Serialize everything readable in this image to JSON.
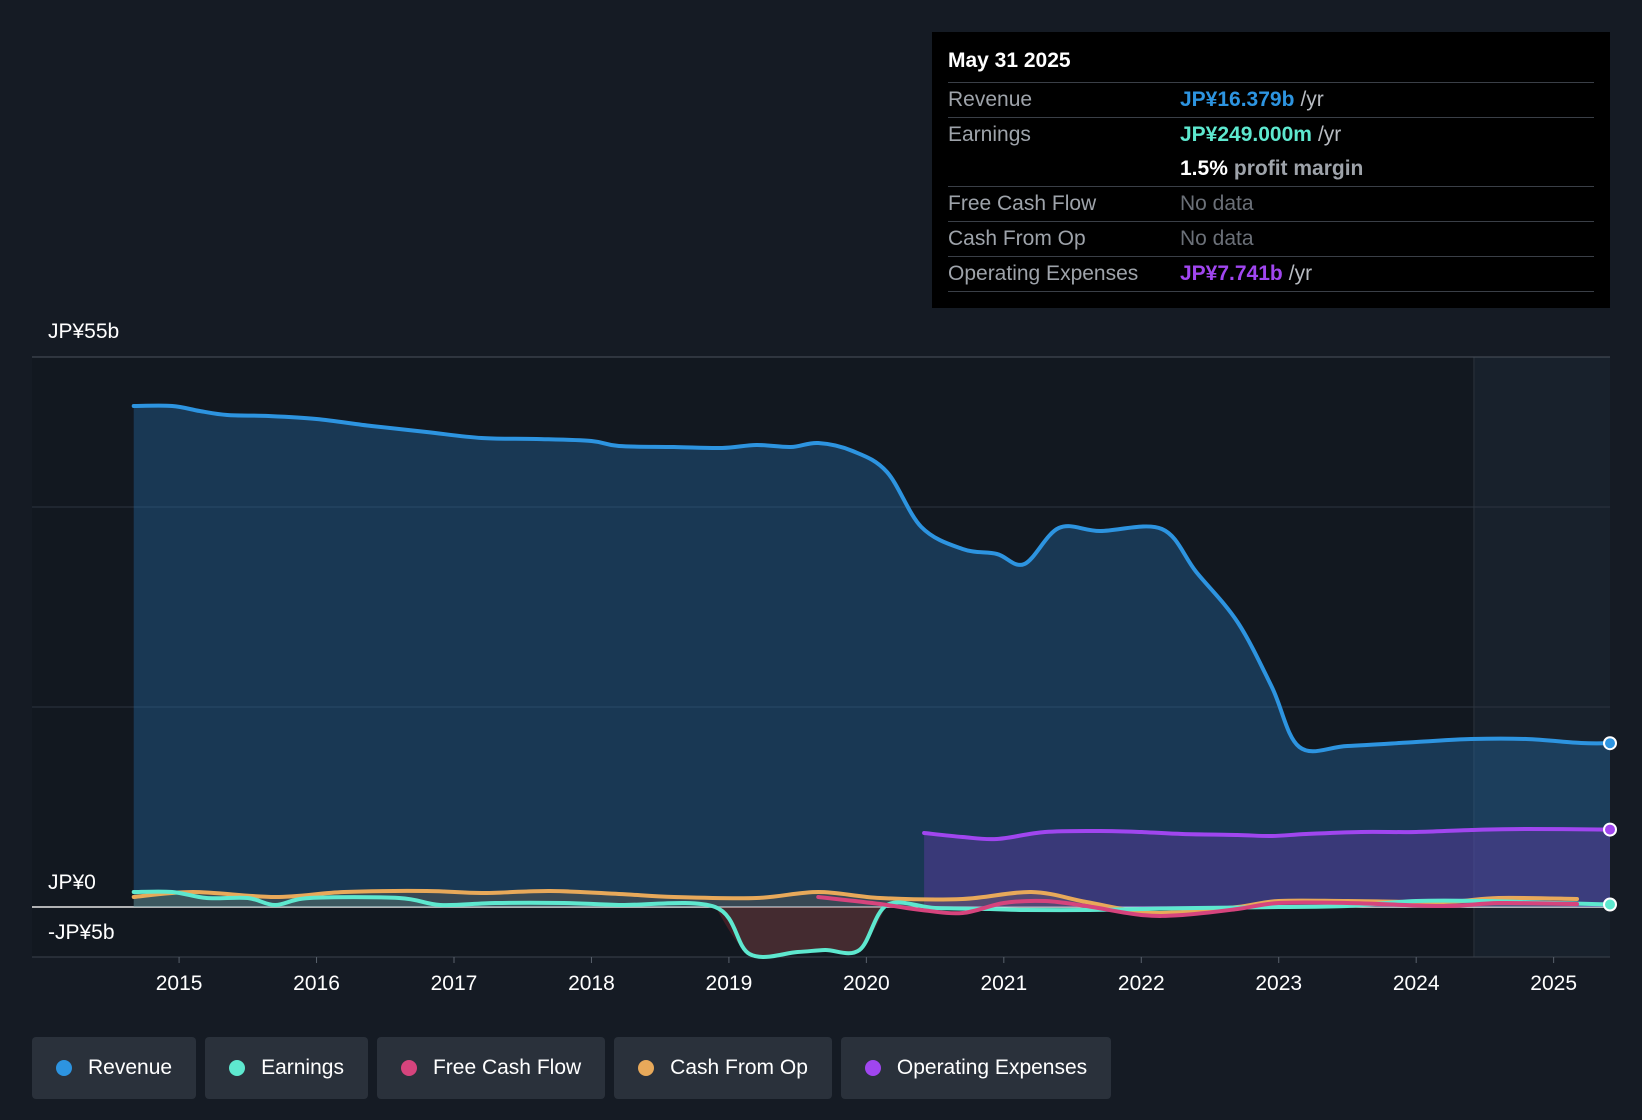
{
  "tooltip": {
    "date": "May 31 2025",
    "revenue_label": "Revenue",
    "revenue_value": "JP¥16.379b",
    "earnings_label": "Earnings",
    "earnings_value": "JP¥249.000m",
    "unit": "/yr",
    "margin_value": "1.5%",
    "margin_label": "profit margin",
    "fcf_label": "Free Cash Flow",
    "fcf_value": "No data",
    "cfo_label": "Cash From Op",
    "cfo_value": "No data",
    "opex_label": "Operating Expenses",
    "opex_value": "JP¥7.741b"
  },
  "colors": {
    "revenue": "#2d94e0",
    "earnings": "#5ee8cf",
    "fcf": "#d6447d",
    "cfo": "#e8a95a",
    "opex": "#a046ef",
    "background": "#151b24"
  },
  "legend": [
    {
      "label": "Revenue",
      "color": "#2d94e0"
    },
    {
      "label": "Earnings",
      "color": "#5ee8cf"
    },
    {
      "label": "Free Cash Flow",
      "color": "#d6447d"
    },
    {
      "label": "Cash From Op",
      "color": "#e8a95a"
    },
    {
      "label": "Operating Expenses",
      "color": "#a046ef"
    }
  ],
  "chart_data": {
    "type": "area",
    "title": "",
    "ylim": [
      -5,
      55
    ],
    "y_labels": [
      "JP¥55b",
      "JP¥0",
      "-JP¥5b"
    ],
    "x_ticks": [
      2015,
      2016,
      2017,
      2018,
      2019,
      2020,
      2021,
      2022,
      2023,
      2024,
      2025
    ],
    "x_tick_labels": [
      "2015",
      "2016",
      "2017",
      "2018",
      "2019",
      "2020",
      "2021",
      "2022",
      "2023",
      "2024",
      "2025"
    ],
    "forecast_start": 2024.42,
    "xlim": [
      2013.93,
      2025.41
    ],
    "series": [
      {
        "name": "Revenue",
        "unit": "JP¥b",
        "points": [
          [
            2014.67,
            50.1
          ],
          [
            2014.95,
            50.1
          ],
          [
            2015.15,
            49.6
          ],
          [
            2015.35,
            49.2
          ],
          [
            2015.65,
            49.1
          ],
          [
            2016.0,
            48.8
          ],
          [
            2016.4,
            48.1
          ],
          [
            2016.8,
            47.5
          ],
          [
            2017.2,
            46.9
          ],
          [
            2017.6,
            46.8
          ],
          [
            2018.0,
            46.6
          ],
          [
            2018.2,
            46.1
          ],
          [
            2018.6,
            46.0
          ],
          [
            2018.95,
            45.9
          ],
          [
            2019.2,
            46.2
          ],
          [
            2019.45,
            46.0
          ],
          [
            2019.65,
            46.4
          ],
          [
            2019.9,
            45.6
          ],
          [
            2020.15,
            43.5
          ],
          [
            2020.4,
            38.0
          ],
          [
            2020.7,
            35.8
          ],
          [
            2020.95,
            35.3
          ],
          [
            2021.15,
            34.3
          ],
          [
            2021.4,
            37.9
          ],
          [
            2021.7,
            37.6
          ],
          [
            2022.15,
            37.8
          ],
          [
            2022.4,
            33.5
          ],
          [
            2022.7,
            28.5
          ],
          [
            2022.95,
            22.0
          ],
          [
            2023.15,
            16.0
          ],
          [
            2023.5,
            16.1
          ],
          [
            2024.0,
            16.5
          ],
          [
            2024.4,
            16.8
          ],
          [
            2024.8,
            16.8
          ],
          [
            2025.2,
            16.4
          ],
          [
            2025.41,
            16.379
          ]
        ]
      },
      {
        "name": "Earnings",
        "unit": "JP¥b",
        "points": [
          [
            2014.67,
            1.5
          ],
          [
            2014.95,
            1.5
          ],
          [
            2015.2,
            0.9
          ],
          [
            2015.5,
            0.9
          ],
          [
            2015.7,
            0.2
          ],
          [
            2015.95,
            0.9
          ],
          [
            2016.6,
            0.9
          ],
          [
            2016.9,
            0.2
          ],
          [
            2017.3,
            0.4
          ],
          [
            2017.8,
            0.4
          ],
          [
            2018.2,
            0.2
          ],
          [
            2018.9,
            0.0
          ],
          [
            2019.15,
            -4.7
          ],
          [
            2019.5,
            -4.5
          ],
          [
            2019.7,
            -4.3
          ],
          [
            2019.95,
            -4.3
          ],
          [
            2020.15,
            0.2
          ],
          [
            2020.5,
            -0.1
          ],
          [
            2020.9,
            -0.2
          ],
          [
            2021.15,
            -0.3
          ],
          [
            2021.6,
            -0.3
          ],
          [
            2022.0,
            -0.2
          ],
          [
            2022.4,
            -0.1
          ],
          [
            2023.0,
            0.0
          ],
          [
            2023.5,
            0.1
          ],
          [
            2024.0,
            0.6
          ],
          [
            2024.5,
            0.6
          ],
          [
            2025.0,
            0.4
          ],
          [
            2025.41,
            0.249
          ]
        ]
      },
      {
        "name": "Free Cash Flow",
        "unit": "JP¥b",
        "points": [
          [
            2019.65,
            1.0
          ],
          [
            2020.1,
            0.3
          ],
          [
            2020.4,
            -0.3
          ],
          [
            2020.7,
            -0.6
          ],
          [
            2021.0,
            0.4
          ],
          [
            2021.3,
            0.6
          ],
          [
            2021.6,
            0.1
          ],
          [
            2022.0,
            -0.8
          ],
          [
            2022.3,
            -0.8
          ],
          [
            2022.7,
            -0.2
          ],
          [
            2023.0,
            0.4
          ],
          [
            2023.5,
            0.4
          ],
          [
            2024.2,
            0.1
          ],
          [
            2024.6,
            0.4
          ],
          [
            2025.17,
            0.3
          ]
        ]
      },
      {
        "name": "Cash From Op",
        "unit": "JP¥b",
        "points": [
          [
            2014.67,
            1.0
          ],
          [
            2015.1,
            1.5
          ],
          [
            2015.7,
            1.0
          ],
          [
            2016.2,
            1.5
          ],
          [
            2016.8,
            1.6
          ],
          [
            2017.2,
            1.4
          ],
          [
            2017.7,
            1.6
          ],
          [
            2018.2,
            1.3
          ],
          [
            2018.6,
            1.0
          ],
          [
            2019.2,
            0.9
          ],
          [
            2019.65,
            1.5
          ],
          [
            2020.1,
            0.9
          ],
          [
            2020.7,
            0.8
          ],
          [
            2021.2,
            1.5
          ],
          [
            2021.6,
            0.5
          ],
          [
            2022.0,
            -0.5
          ],
          [
            2022.3,
            -0.5
          ],
          [
            2022.7,
            0.0
          ],
          [
            2023.0,
            0.6
          ],
          [
            2023.5,
            0.6
          ],
          [
            2024.2,
            0.5
          ],
          [
            2024.6,
            0.9
          ],
          [
            2025.17,
            0.8
          ]
        ]
      },
      {
        "name": "Operating Expenses",
        "unit": "JP¥b",
        "points": [
          [
            2020.42,
            7.4
          ],
          [
            2020.7,
            7.0
          ],
          [
            2020.95,
            6.8
          ],
          [
            2021.3,
            7.5
          ],
          [
            2021.7,
            7.6
          ],
          [
            2022.0,
            7.5
          ],
          [
            2022.3,
            7.3
          ],
          [
            2022.7,
            7.2
          ],
          [
            2022.95,
            7.1
          ],
          [
            2023.2,
            7.3
          ],
          [
            2023.6,
            7.5
          ],
          [
            2024.0,
            7.5
          ],
          [
            2024.4,
            7.7
          ],
          [
            2024.8,
            7.8
          ],
          [
            2025.41,
            7.741
          ]
        ]
      }
    ]
  }
}
